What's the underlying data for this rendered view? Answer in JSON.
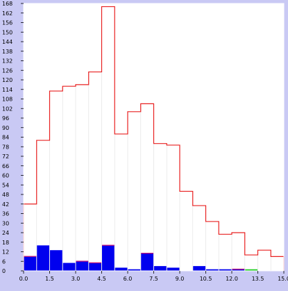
{
  "chart_data": {
    "type": "bar",
    "title": "",
    "xlabel": "",
    "ylabel": "",
    "xlim": [
      0,
      15.0
    ],
    "ylim": [
      0,
      168
    ],
    "bin_width": 0.75,
    "x_ticks": [
      "0.0",
      "1.5",
      "3.0",
      "4.5",
      "6.0",
      "7.5",
      "9.0",
      "10.5",
      "12.0",
      "13.5",
      "15.0"
    ],
    "y_ticks": [
      "0",
      "6",
      "12",
      "18",
      "24",
      "30",
      "36",
      "42",
      "48",
      "54",
      "60",
      "66",
      "72",
      "78",
      "84",
      "90",
      "96",
      "102",
      "108",
      "114",
      "120",
      "126",
      "132",
      "138",
      "144",
      "150",
      "156",
      "162",
      "168"
    ],
    "bin_starts": [
      0,
      0.75,
      1.5,
      2.25,
      3.0,
      3.75,
      4.5,
      5.25,
      6.0,
      6.75,
      7.5,
      8.25,
      9.0,
      9.75,
      10.5,
      11.25,
      12.0,
      12.75,
      13.5,
      14.25
    ],
    "series": [
      {
        "values": [
          42,
          82,
          113,
          116,
          117,
          125,
          166,
          86,
          100,
          105,
          80,
          79,
          50,
          41,
          31,
          23,
          24,
          10,
          13,
          9
        ],
        "color": "#e82020",
        "style": "outline"
      },
      {
        "values": [
          9,
          16,
          13,
          5,
          6,
          5,
          16,
          2,
          1,
          11,
          3,
          2,
          0,
          3,
          1,
          1,
          1,
          0,
          0,
          0
        ],
        "color": "#0000ee",
        "style": "filled"
      },
      {
        "values": [
          1,
          0,
          0,
          0,
          1,
          1,
          1,
          0,
          0,
          1,
          0,
          0,
          0,
          0,
          0,
          0,
          1,
          0,
          0,
          0
        ],
        "color": "#c0157a",
        "style": "stacked-cap"
      },
      {
        "values": [
          0,
          0,
          0,
          0,
          0,
          0,
          0,
          0,
          0,
          0,
          0,
          0,
          0,
          0,
          0,
          0,
          0,
          1,
          0,
          0
        ],
        "color": "#22cc22",
        "style": "filled"
      }
    ],
    "grid": false,
    "frame_color": "#ffffff",
    "plot_background": "#ffffff",
    "page_background": "#c9c9f4"
  }
}
